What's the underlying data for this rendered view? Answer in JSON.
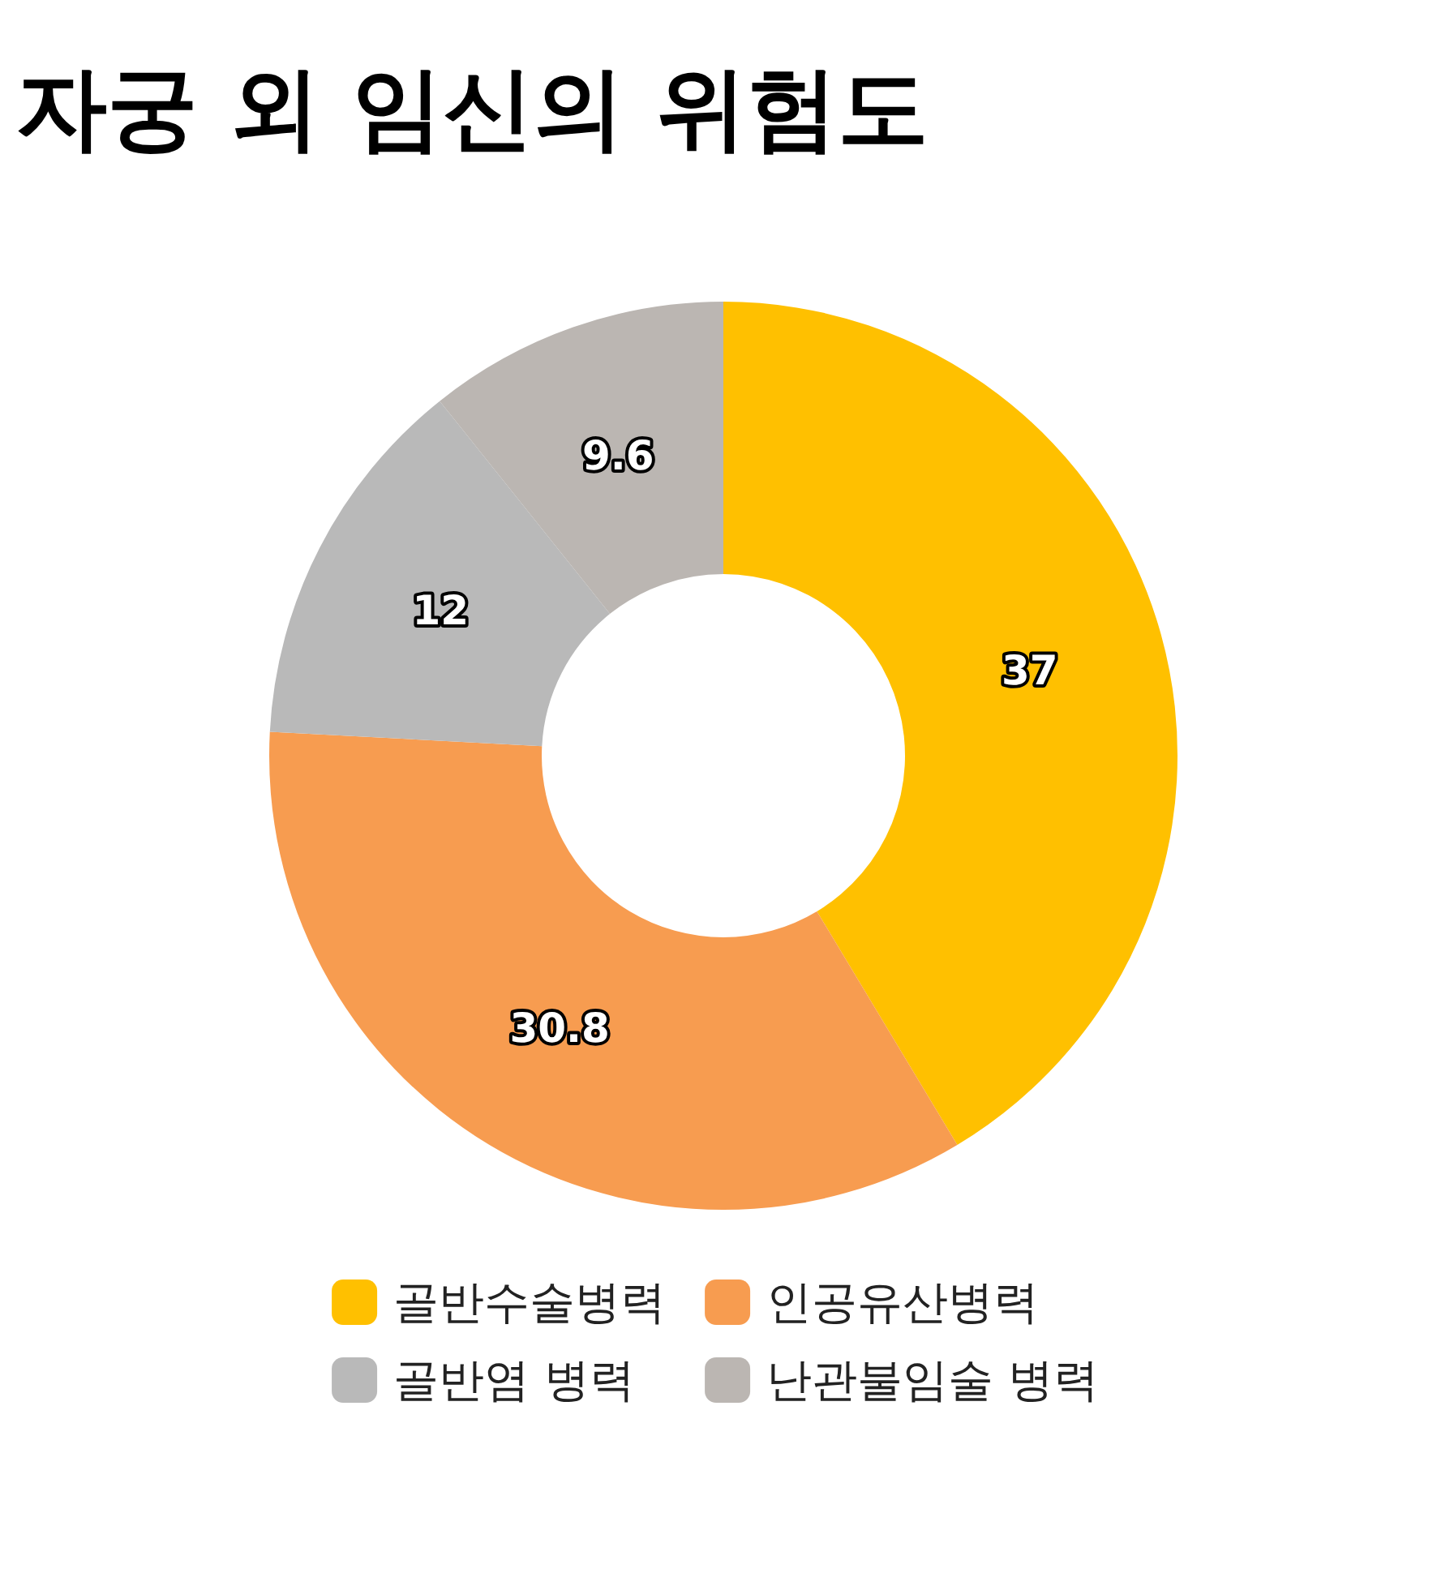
{
  "chart_data": {
    "type": "donut",
    "title": "자궁 외 임신의 위험도",
    "categories": [
      "골반수술병력",
      "인공유산병력",
      "골반염 병력",
      "난관불임술 병력"
    ],
    "values": [
      37,
      30.8,
      12,
      9.6
    ],
    "colors": [
      "#ffc000",
      "#f79c50",
      "#b9b9b9",
      "#bbb6b2"
    ],
    "data_labels": true,
    "legend": "bottom"
  }
}
